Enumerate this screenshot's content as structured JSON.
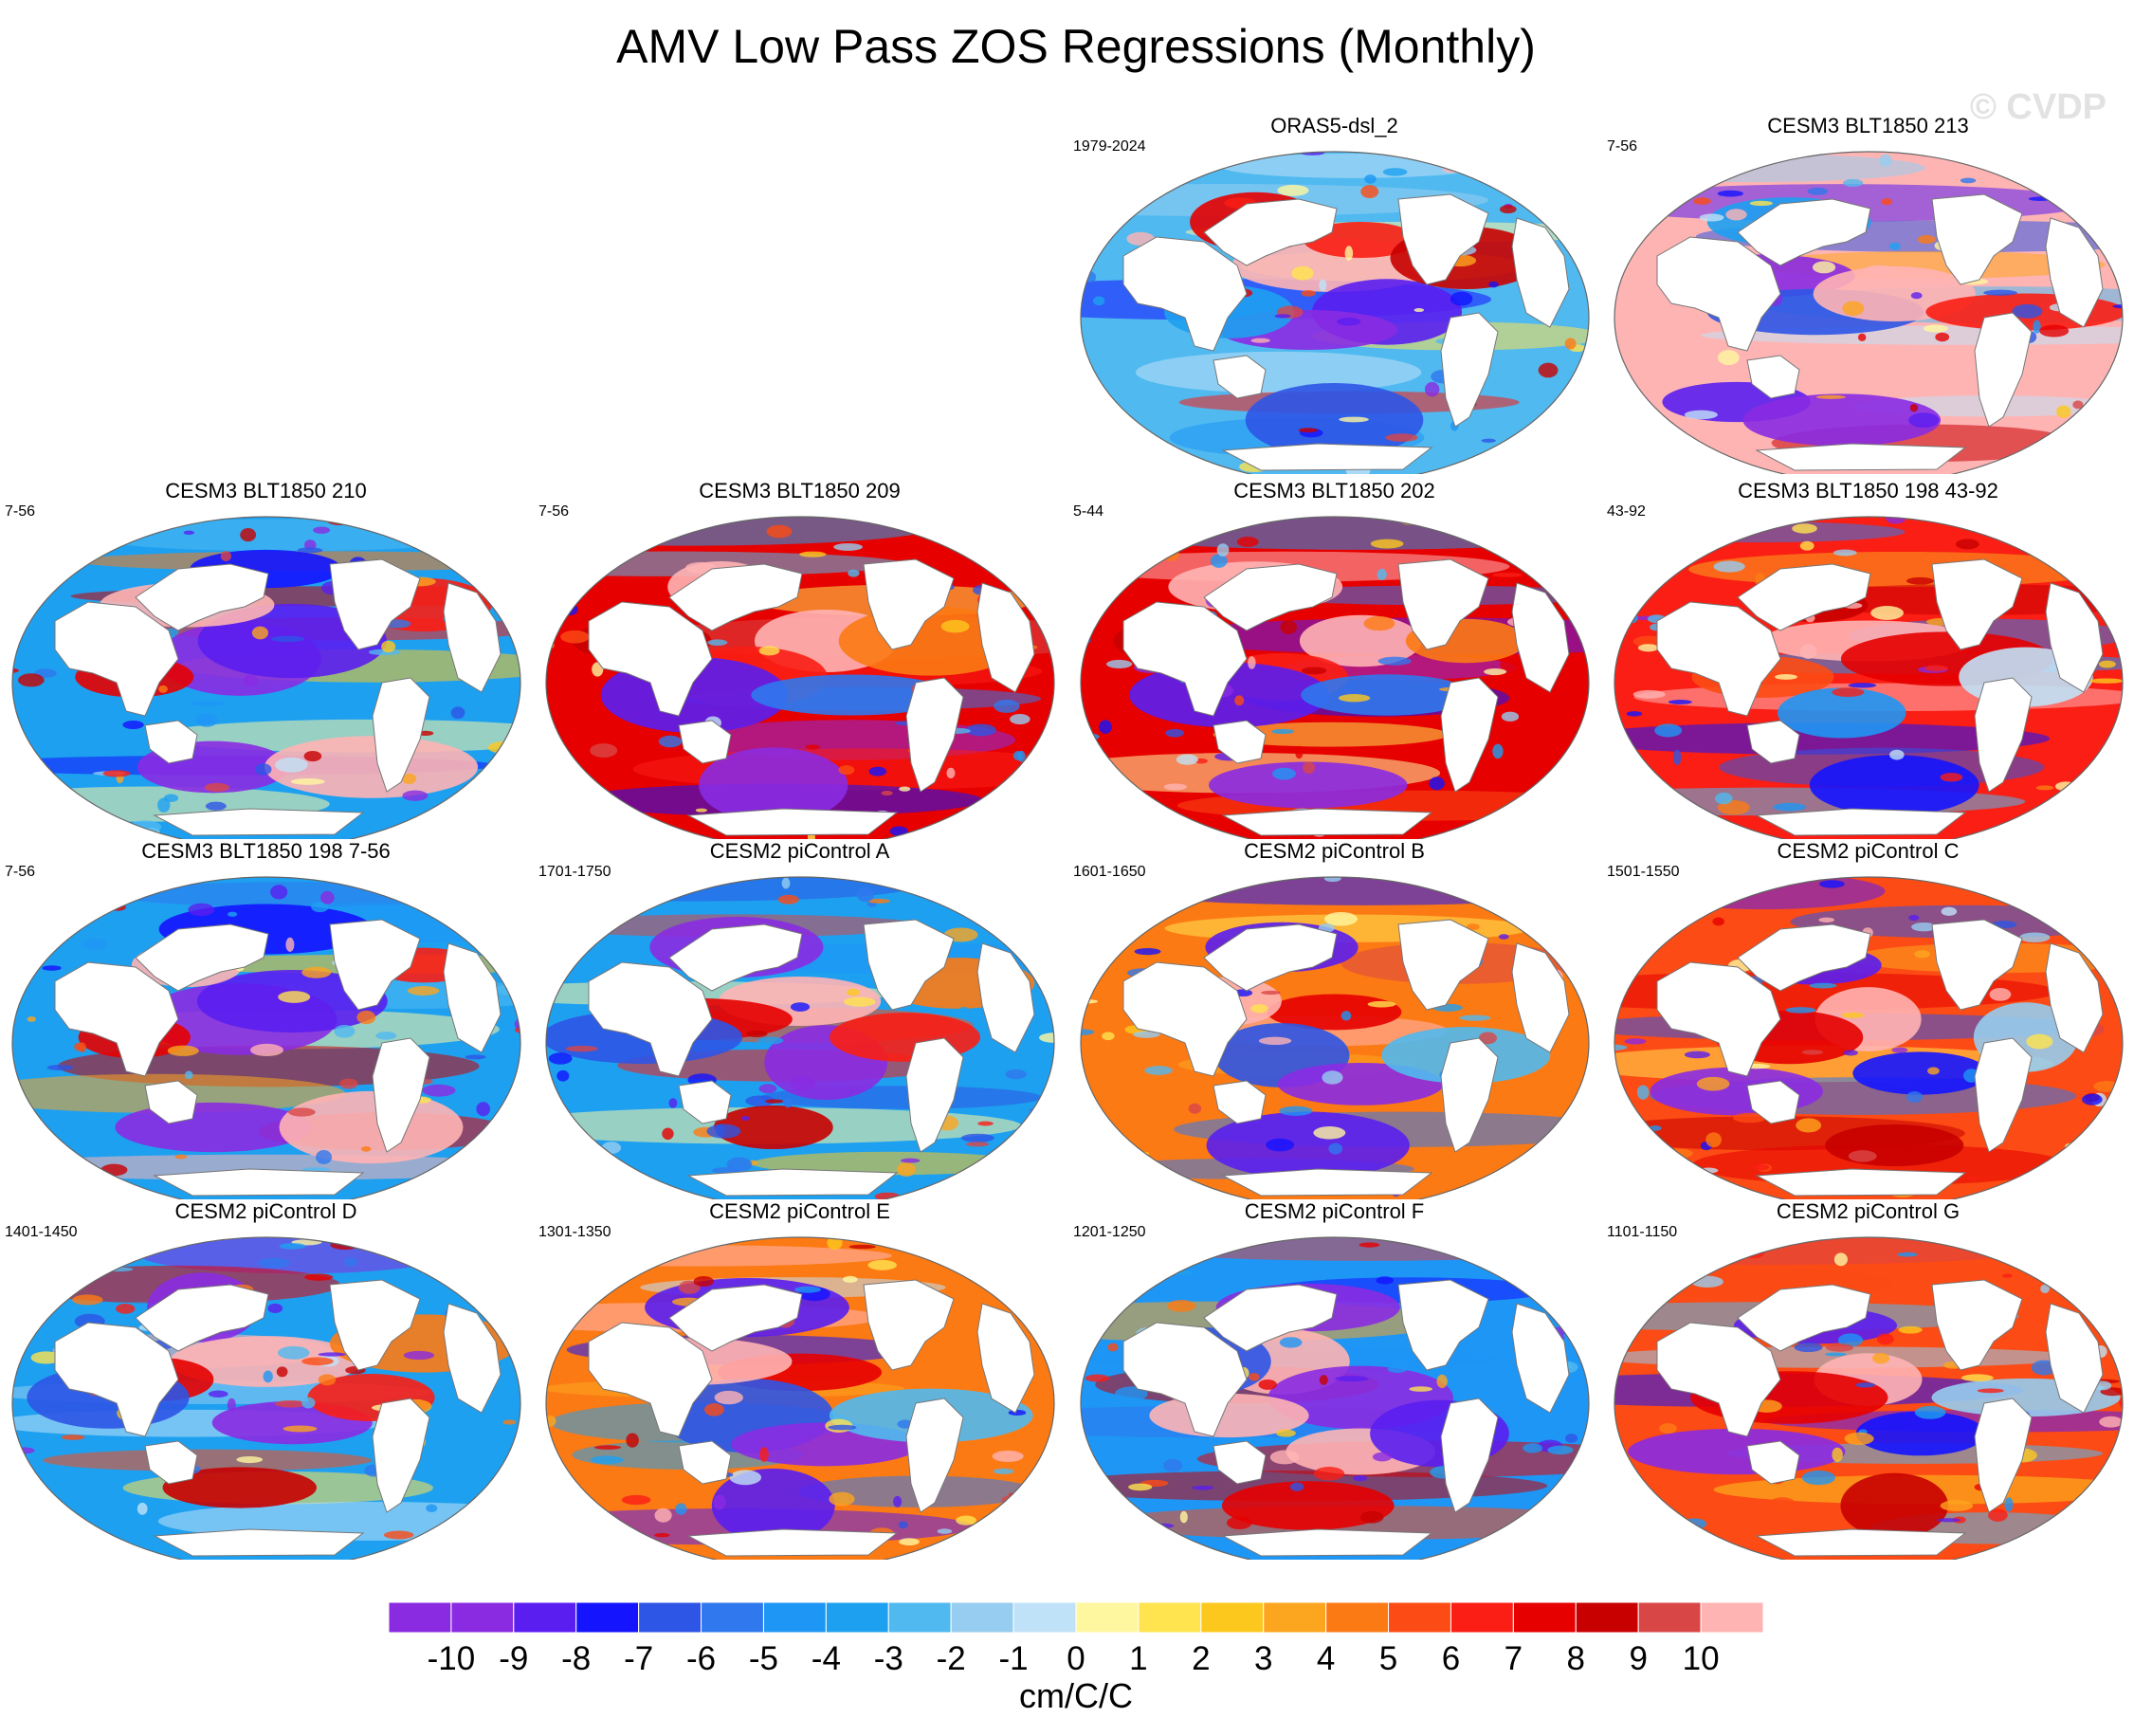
{
  "figure": {
    "title": "AMV Low Pass ZOS Regressions (Monthly)",
    "watermark": "© CVDP"
  },
  "panels": [
    {
      "title": "ORAS5-dsl_2",
      "years": "1979-2024",
      "pattern": "obs"
    },
    {
      "title": "CESM3 BLT1850 213",
      "years": "7-56",
      "pattern": "pinkland"
    },
    {
      "title": "CESM3 BLT1850 210",
      "years": "7-56",
      "pattern": "coolpac"
    },
    {
      "title": "CESM3 BLT1850 209",
      "years": "7-56",
      "pattern": "warmpac"
    },
    {
      "title": "CESM3 BLT1850 202",
      "years": "5-44",
      "pattern": "warmpac"
    },
    {
      "title": "CESM3 BLT1850 198 43-92",
      "years": "43-92",
      "pattern": "warmpac2"
    },
    {
      "title": "CESM3 BLT1850 198 7-56",
      "years": "7-56",
      "pattern": "coolpac"
    },
    {
      "title": "CESM2 piControl A",
      "years": "1701-1750",
      "pattern": "mixed"
    },
    {
      "title": "CESM2 piControl B",
      "years": "1601-1650",
      "pattern": "mixed2"
    },
    {
      "title": "CESM2 piControl C",
      "years": "1501-1550",
      "pattern": "mixed3"
    },
    {
      "title": "CESM2 piControl D",
      "years": "1401-1450",
      "pattern": "mixed"
    },
    {
      "title": "CESM2 piControl E",
      "years": "1301-1350",
      "pattern": "mixed2"
    },
    {
      "title": "CESM2 piControl F",
      "years": "1201-1250",
      "pattern": "coolF"
    },
    {
      "title": "CESM2 piControl G",
      "years": "1101-1150",
      "pattern": "mixed3"
    }
  ],
  "colorbar": {
    "units": "cm/C/C",
    "labels": [
      "-10",
      "-9",
      "-8",
      "-7",
      "-6",
      "-5",
      "-4",
      "-3",
      "-2",
      "-1",
      "0",
      "1",
      "2",
      "3",
      "4",
      "5",
      "6",
      "7",
      "8",
      "9",
      "10"
    ],
    "colors": [
      "#8a2be2",
      "#5a1ef0",
      "#1414ff",
      "#2d55e6",
      "#2f78ee",
      "#1e96f5",
      "#1ea0f0",
      "#50b9f0",
      "#96cdf0",
      "#c0e2f8",
      "#fff7a0",
      "#ffe34f",
      "#fcc81e",
      "#fca51e",
      "#fc7a14",
      "#fc4b14",
      "#fa1e14",
      "#e60000",
      "#c80000",
      "#d94646",
      "#ffb4b4"
    ]
  }
}
